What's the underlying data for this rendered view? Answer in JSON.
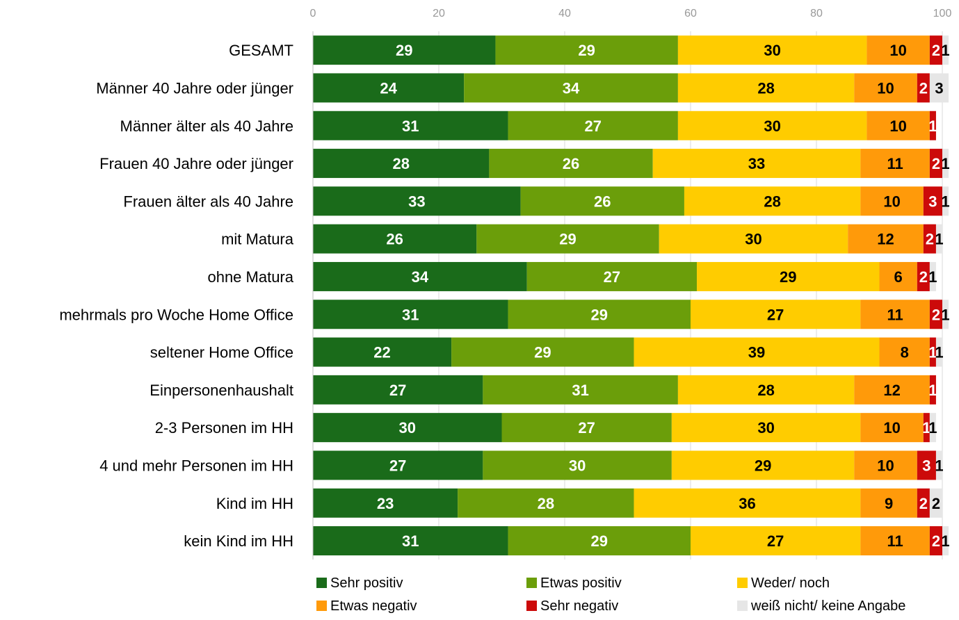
{
  "chart_data": {
    "type": "bar",
    "orientation": "horizontal",
    "stacked": true,
    "xlim": [
      0,
      100
    ],
    "x_ticks": [
      "0",
      "20",
      "40",
      "60",
      "80",
      "100"
    ],
    "grid": true,
    "legend_position": "bottom",
    "categories": [
      "GESAMT",
      "Männer 40 Jahre oder jünger",
      "Männer älter als 40 Jahre",
      "Frauen 40 Jahre oder jünger",
      "Frauen älter als 40 Jahre",
      "mit Matura",
      "ohne Matura",
      "mehrmals pro Woche Home Office",
      "seltener Home Office",
      "Einpersonenhaushalt",
      "2-3 Personen im HH",
      "4 und mehr Personen im HH",
      "Kind im HH",
      "kein Kind im HH"
    ],
    "series": [
      {
        "name": "Sehr positiv",
        "color": "#1a6b1a",
        "label_color": "#ffffff",
        "values": [
          29,
          24,
          31,
          28,
          33,
          26,
          34,
          31,
          22,
          27,
          30,
          27,
          23,
          31
        ]
      },
      {
        "name": "Etwas positiv",
        "color": "#6b9e0a",
        "label_color": "#ffffff",
        "values": [
          29,
          34,
          27,
          26,
          26,
          29,
          27,
          29,
          29,
          31,
          27,
          30,
          28,
          29
        ]
      },
      {
        "name": "Weder/ noch",
        "color": "#ffcc00",
        "label_color": "#000000",
        "values": [
          30,
          28,
          30,
          33,
          28,
          30,
          29,
          27,
          39,
          28,
          30,
          29,
          36,
          27
        ]
      },
      {
        "name": "Etwas negativ",
        "color": "#ff9a0a",
        "label_color": "#000000",
        "values": [
          10,
          10,
          10,
          11,
          10,
          12,
          6,
          11,
          8,
          12,
          10,
          10,
          9,
          11
        ]
      },
      {
        "name": "Sehr negativ",
        "color": "#cc0a0a",
        "label_color": "#ffffff",
        "values": [
          2,
          2,
          1,
          2,
          3,
          2,
          2,
          2,
          1,
          1,
          1,
          3,
          2,
          2
        ]
      },
      {
        "name": "weiß nicht/ keine Angabe",
        "color": "#e6e6e6",
        "label_color": "#000000",
        "values": [
          1,
          3,
          0,
          1,
          1,
          1,
          1,
          1,
          1,
          0,
          1,
          1,
          2,
          1
        ]
      }
    ]
  }
}
